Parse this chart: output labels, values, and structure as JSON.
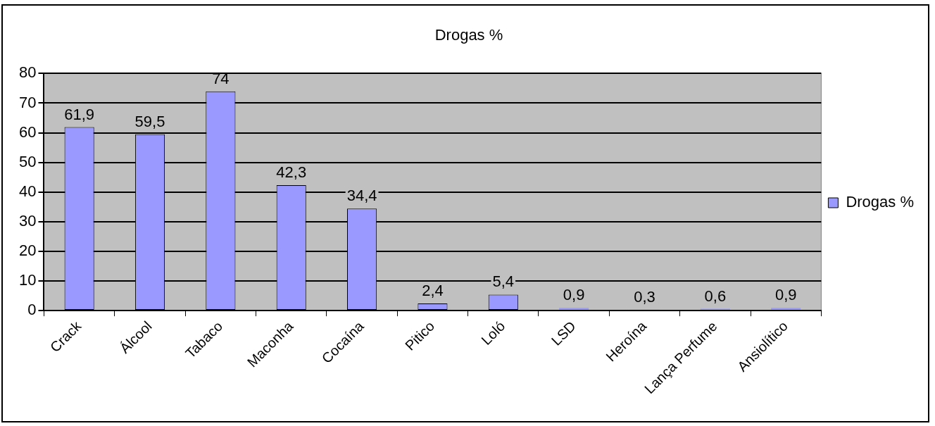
{
  "chart_data": {
    "type": "bar",
    "title": "Drogas %",
    "categories": [
      "Crack",
      "Álcool",
      "Tabaco",
      "Maconha",
      "Cocaína",
      "Pitico",
      "Loló",
      "LSD",
      "Heroína",
      "Lança Perfume",
      "Ansiolítico"
    ],
    "series": [
      {
        "name": "Drogas %",
        "color": "#9999ff",
        "values": [
          61.9,
          59.5,
          74,
          42.3,
          34.4,
          2.4,
          5.4,
          0.9,
          0.3,
          0.6,
          0.9
        ],
        "value_labels": [
          "61,9",
          "59,5",
          "74",
          "42,3",
          "34,4",
          "2,4",
          "5,4",
          "0,9",
          "0,3",
          "0,6",
          "0,9"
        ]
      }
    ],
    "ylim": [
      0,
      80
    ],
    "yticks": [
      0,
      10,
      20,
      30,
      40,
      50,
      60,
      70,
      80
    ],
    "grid": "y",
    "legend": "right"
  }
}
